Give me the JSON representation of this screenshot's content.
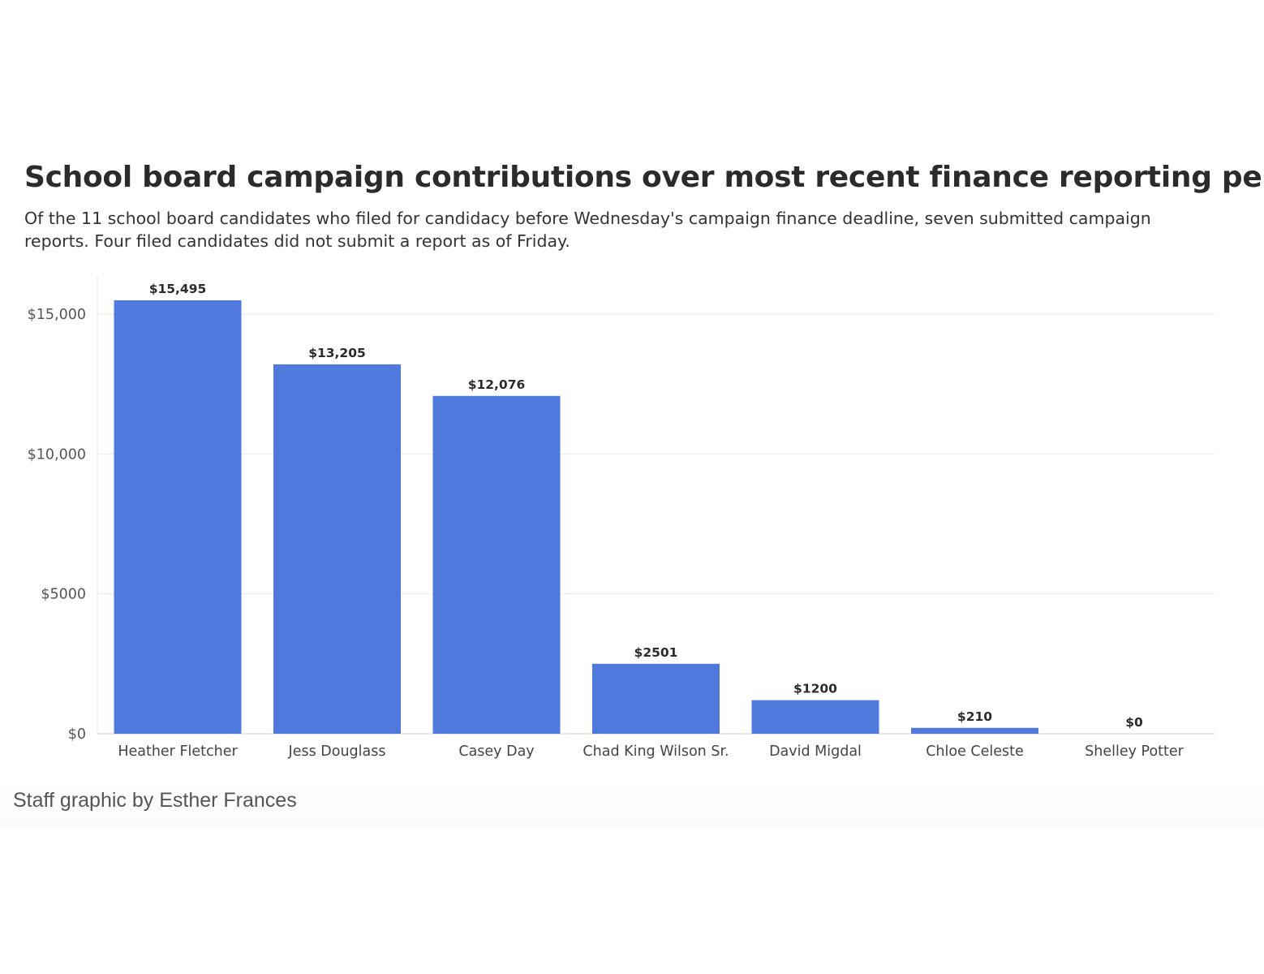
{
  "chart_data": {
    "type": "bar",
    "title": "School board campaign contributions over most recent finance reporting period",
    "subtitle": "Of the 11 school board candidates who filed for candidacy before Wednesday's campaign finance deadline, seven submitted campaign reports. Four filed candidates did not submit a report as of Friday.",
    "categories": [
      "Heather Fletcher",
      "Jess Douglass",
      "Casey Day",
      "Chad King Wilson Sr.",
      "David Migdal",
      "Chloe Celeste",
      "Shelley Potter"
    ],
    "values": [
      15495,
      13205,
      12076,
      2501,
      1200,
      210,
      0
    ],
    "value_labels": [
      "$15,495",
      "$13,205",
      "$12,076",
      "$2501",
      "$1200",
      "$210",
      "$0"
    ],
    "y_ticks": [
      0,
      5000,
      10000,
      15000
    ],
    "y_tick_labels": [
      "$0",
      "$5000",
      "$10,000",
      "$15,000"
    ],
    "ylim": [
      0,
      16400
    ],
    "grid": true,
    "bar_color": "#4f79dd",
    "credit": "Staff graphic by Esther Frances"
  }
}
